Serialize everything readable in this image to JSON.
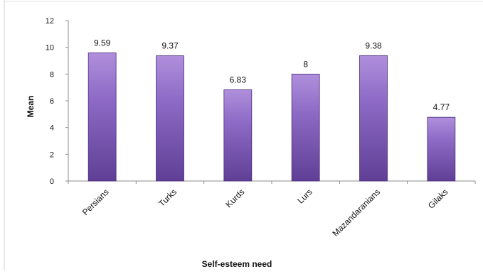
{
  "chart_data": {
    "type": "bar",
    "title": "",
    "xlabel": "Self-esteem need",
    "ylabel": "Mean",
    "categories": [
      "Persians",
      "Turks",
      "Kurds",
      "Lurs",
      "Mazandaranians",
      "Gilaks"
    ],
    "values": [
      9.59,
      9.37,
      6.83,
      8,
      9.38,
      4.77
    ],
    "data_labels": [
      "9.59",
      "9.37",
      "6.83",
      "8",
      "9.38",
      "4.77"
    ],
    "ylim": [
      0,
      12
    ],
    "yticks": [
      "0",
      "2",
      "4",
      "6",
      "8",
      "10",
      "12"
    ],
    "grid": false,
    "legend": "none",
    "colors": {
      "bar_top": "#b08fdc",
      "bar_mid": "#8e6bc6",
      "bar_bottom": "#5f3f96",
      "bar_stroke": "#4a2d7a",
      "axis": "#8c8c8c",
      "frame": "#d0d0d0"
    }
  }
}
